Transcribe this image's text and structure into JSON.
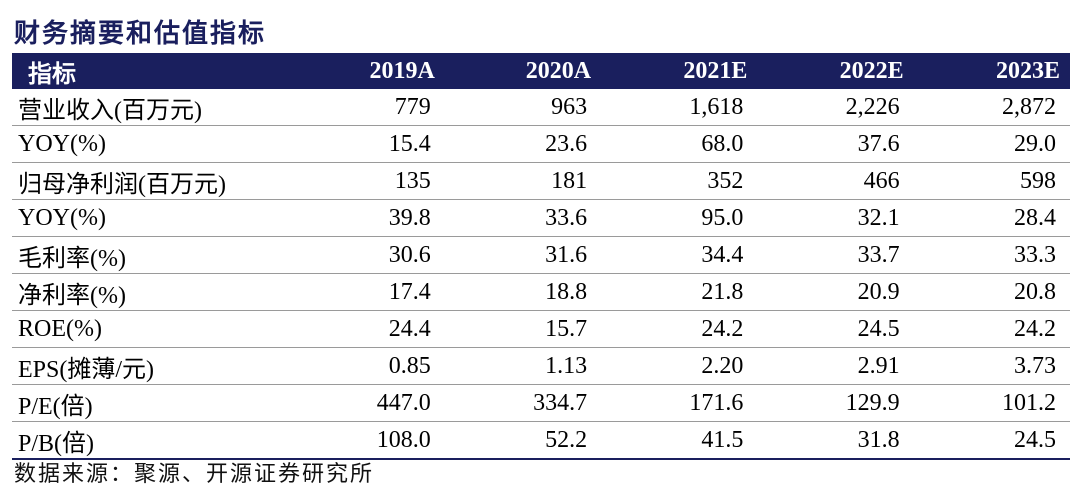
{
  "title": "财务摘要和估值指标",
  "table": {
    "headers": [
      "指标",
      "2019A",
      "2020A",
      "2021E",
      "2022E",
      "2023E"
    ],
    "rows": [
      [
        "营业收入(百万元)",
        "779",
        "963",
        "1,618",
        "2,226",
        "2,872"
      ],
      [
        "YOY(%)",
        "15.4",
        "23.6",
        "68.0",
        "37.6",
        "29.0"
      ],
      [
        "归母净利润(百万元)",
        "135",
        "181",
        "352",
        "466",
        "598"
      ],
      [
        "YOY(%)",
        "39.8",
        "33.6",
        "95.0",
        "32.1",
        "28.4"
      ],
      [
        "毛利率(%)",
        "30.6",
        "31.6",
        "34.4",
        "33.7",
        "33.3"
      ],
      [
        "净利率(%)",
        "17.4",
        "18.8",
        "21.8",
        "20.9",
        "20.8"
      ],
      [
        "ROE(%)",
        "24.4",
        "15.7",
        "24.2",
        "24.5",
        "24.2"
      ],
      [
        "EPS(摊薄/元)",
        "0.85",
        "1.13",
        "2.20",
        "2.91",
        "3.73"
      ],
      [
        "P/E(倍)",
        "447.0",
        "334.7",
        "171.6",
        "129.9",
        "101.2"
      ],
      [
        "P/B(倍)",
        "108.0",
        "52.2",
        "41.5",
        "31.8",
        "24.5"
      ]
    ]
  },
  "source": "数据来源：聚源、开源证券研究所",
  "colors": {
    "header_bg": "#1a1f5e",
    "title": "#1a1f5e"
  }
}
